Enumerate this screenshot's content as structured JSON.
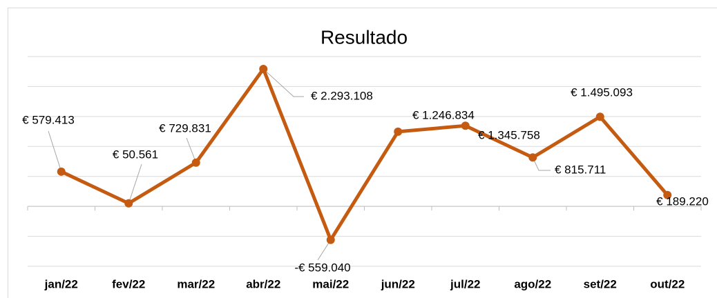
{
  "chart_data": {
    "type": "line",
    "title": "Resultado",
    "categories": [
      "jan/22",
      "fev/22",
      "mar/22",
      "abr/22",
      "mai/22",
      "jun/22",
      "jul/22",
      "ago/22",
      "set/22",
      "out/22"
    ],
    "series": [
      {
        "name": "Resultado",
        "color": "#c55a11",
        "values": [
          579413,
          50561,
          729831,
          2293108,
          -559040,
          1246834,
          1345758,
          815711,
          1495093,
          189220
        ],
        "value_labels": [
          "€ 579.413",
          "€ 50.561",
          "€ 729.831",
          "€ 2.293.108",
          "-€ 559.040",
          "€ 1.246.834",
          "€ 1.345.758",
          "€ 815.711",
          "€ 1.495.093",
          "€ 189.220"
        ]
      }
    ],
    "ylim": [
      -1000000,
      2500000
    ],
    "yticks": [
      -1000000,
      -500000,
      0,
      500000,
      1000000,
      1500000,
      2000000,
      2500000
    ],
    "grid": true
  }
}
